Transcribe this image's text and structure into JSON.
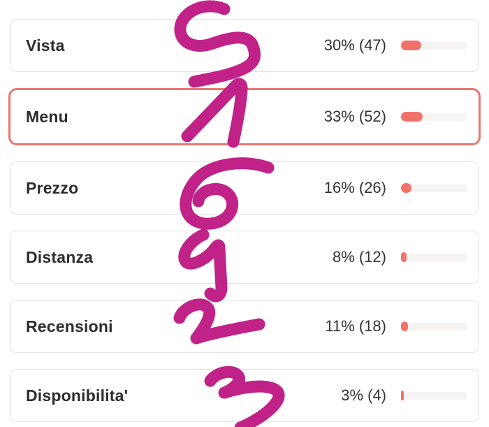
{
  "poll": {
    "options": [
      {
        "label": "Vista",
        "percent": 30,
        "votes": 47,
        "stats": "30% (47)",
        "selected": false
      },
      {
        "label": "Menu",
        "percent": 33,
        "votes": 52,
        "stats": "33% (52)",
        "selected": true
      },
      {
        "label": "Prezzo",
        "percent": 16,
        "votes": 26,
        "stats": "16% (26)",
        "selected": false
      },
      {
        "label": "Distanza",
        "percent": 8,
        "votes": 12,
        "stats": "8% (12)",
        "selected": false
      },
      {
        "label": "Recensioni",
        "percent": 11,
        "votes": 18,
        "stats": "11% (18)",
        "selected": false
      },
      {
        "label": "Disponibilita'",
        "percent": 3,
        "votes": 4,
        "stats": "3% (4)",
        "selected": false
      }
    ]
  },
  "annotation": {
    "description": "handwritten marker digits ranking each option",
    "digits": [
      "5",
      "1",
      "6",
      "4",
      "2",
      "3"
    ],
    "color": "#c02287"
  },
  "colors": {
    "bar_fill": "#f1726b",
    "bar_track": "#f5f4f2",
    "card_border": "#e2e1df",
    "selected_border": "#e9766e",
    "label_text": "#2b2d2e",
    "stats_text": "#333333",
    "background": "#ffffff"
  },
  "chart_data": {
    "type": "bar",
    "categories": [
      "Vista",
      "Menu",
      "Prezzo",
      "Distanza",
      "Recensioni",
      "Disponibilita'"
    ],
    "series": [
      {
        "name": "percent",
        "values": [
          30,
          33,
          16,
          8,
          11,
          3
        ]
      },
      {
        "name": "votes",
        "values": [
          47,
          52,
          26,
          12,
          18,
          4
        ]
      }
    ],
    "title": "",
    "xlabel": "",
    "ylabel": "",
    "ylim": [
      0,
      100
    ],
    "legend_position": "none",
    "grid": false
  }
}
